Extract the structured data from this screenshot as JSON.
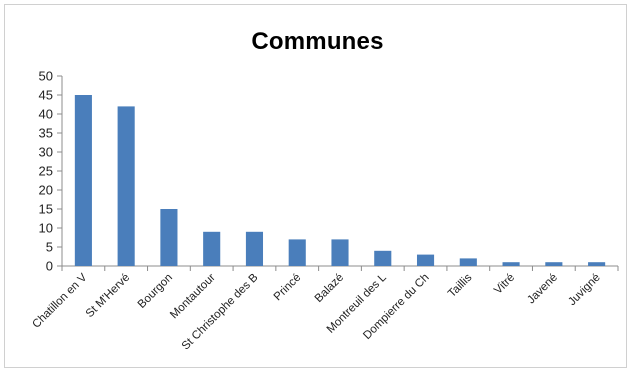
{
  "chart_data": {
    "type": "bar",
    "title": "Communes",
    "categories": [
      "Chatillon en V",
      "St M'Hervé",
      "Bourgon",
      "Montautour",
      "St Christophe des B",
      "Princé",
      "Balazé",
      "Montreuil des L",
      "Dompierre du Ch",
      "Taillis",
      "Vitré",
      "Javené",
      "Juvigné"
    ],
    "values": [
      45,
      42,
      15,
      9,
      9,
      7,
      7,
      4,
      3,
      2,
      1,
      1,
      1
    ],
    "yticks": [
      "0",
      "5",
      "10",
      "15",
      "20",
      "25",
      "30",
      "35",
      "40",
      "45",
      "50"
    ],
    "ylim": [
      0,
      50
    ],
    "grid": false,
    "legend": "none",
    "bar_color": "#4a7ebb",
    "axis_color": "#8c8c8c"
  }
}
